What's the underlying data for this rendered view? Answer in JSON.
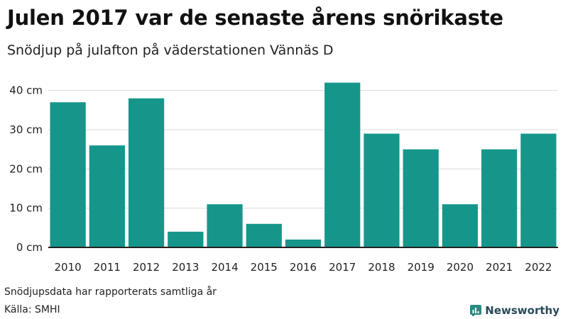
{
  "title": "Julen 2017 var de senaste årens snörikaste",
  "subtitle": "Snödjup på julafton på väderstationen Vännäs D",
  "footer": {
    "note": "Snödjupsdata har rapporterats samtliga år",
    "source": "Källa: SMHI",
    "brand": "Newsworthy"
  },
  "colors": {
    "bar": "#16968a",
    "grid": "#dcdcdc",
    "axis": "#222222",
    "brand": "#2a8a82"
  },
  "chart_data": {
    "type": "bar",
    "title": "Julen 2017 var de senaste årens snörikaste",
    "subtitle": "Snödjup på julafton på väderstationen Vännäs D",
    "xlabel": "",
    "ylabel": "",
    "categories": [
      "2010",
      "2011",
      "2012",
      "2013",
      "2014",
      "2015",
      "2016",
      "2017",
      "2018",
      "2019",
      "2020",
      "2021",
      "2022"
    ],
    "values": [
      37,
      26,
      38,
      4,
      11,
      6,
      2,
      42,
      29,
      25,
      11,
      25,
      29
    ],
    "ylim": [
      0,
      45
    ],
    "yticks": [
      0,
      10,
      20,
      30,
      40
    ],
    "ytick_labels": [
      "0 cm",
      "10 cm",
      "20 cm",
      "30 cm",
      "40 cm"
    ],
    "grid": true,
    "legend": "none"
  }
}
